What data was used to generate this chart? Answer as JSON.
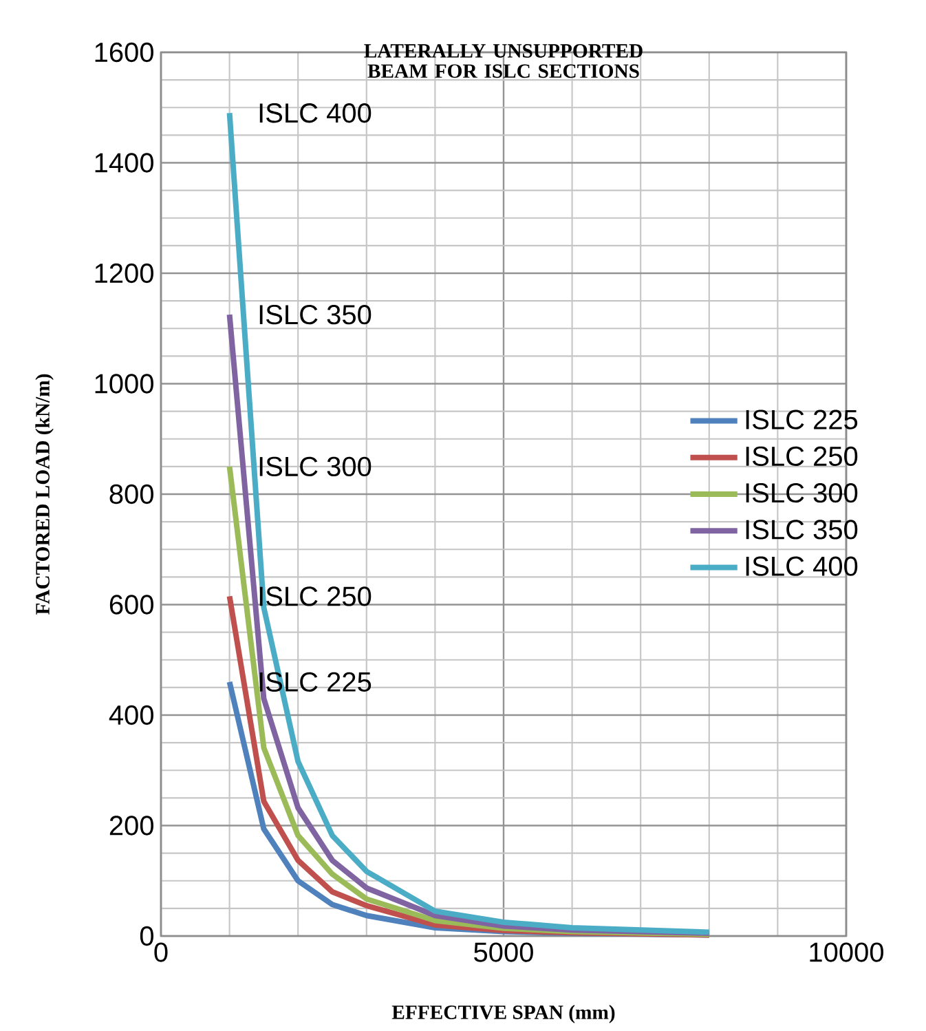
{
  "chart_data": {
    "type": "line",
    "title": "LATERALLY UNSUPPORTED BEAM FOR ISLC SECTIONS",
    "xlabel": "EFFECTIVE SPAN (mm)",
    "ylabel": "FACTORED  LOAD (kN/m)",
    "x": [
      1000,
      1500,
      2000,
      2500,
      3000,
      4000,
      5000,
      6000,
      8000
    ],
    "series": [
      {
        "name": "ISLC 225",
        "color": "#4f81bd",
        "values": [
          460,
          194,
          100,
          57,
          37,
          15,
          8,
          5,
          2
        ]
      },
      {
        "name": "ISLC 250",
        "color": "#c0504d",
        "values": [
          615,
          244,
          137,
          80,
          55,
          20,
          10,
          6,
          2
        ]
      },
      {
        "name": "ISLC 300",
        "color": "#9bbb59",
        "values": [
          850,
          341,
          182,
          112,
          67,
          28,
          14,
          8,
          3
        ]
      },
      {
        "name": "ISLC 350",
        "color": "#8064a2",
        "values": [
          1125,
          430,
          232,
          137,
          87,
          37,
          18,
          11,
          5
        ]
      },
      {
        "name": "ISLC 400",
        "color": "#4bacc6",
        "values": [
          1490,
          595,
          316,
          182,
          117,
          45,
          25,
          15,
          7
        ]
      }
    ],
    "xlim": [
      0,
      10000
    ],
    "xticks": [
      0,
      5000,
      10000
    ],
    "ylim": [
      0,
      1600
    ],
    "yticks": [
      0,
      200,
      400,
      600,
      800,
      1000,
      1200,
      1400,
      1600
    ],
    "grid": true,
    "legend": "right",
    "marker": "none",
    "line_style": "solid"
  }
}
